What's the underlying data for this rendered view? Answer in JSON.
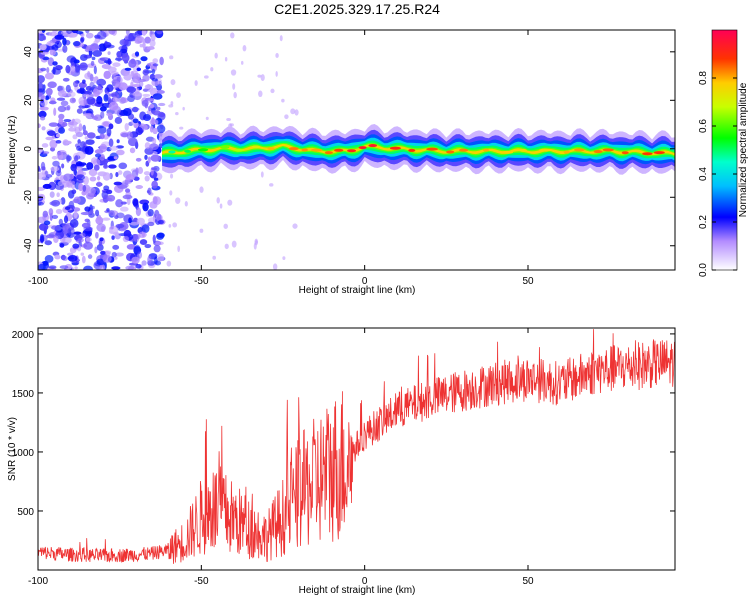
{
  "title": "C2E1.2025.329.17.25.R24",
  "chart_data": [
    {
      "type": "heatmap",
      "xlabel": "Height of straight line (km)",
      "ylabel": "Frequency (Hz)",
      "xlim": [
        -100,
        95
      ],
      "ylim": [
        -50,
        49
      ],
      "xticks": [
        -100,
        -50,
        0,
        50
      ],
      "yticks": [
        -40,
        -20,
        0,
        20,
        40
      ],
      "colorbar": {
        "label": "Normalized spectral amplitude",
        "range": [
          0,
          1
        ],
        "ticks": [
          "0.0",
          "0.2",
          "0.4",
          "0.6",
          "0.8"
        ]
      },
      "ridge": {
        "description_x_km": [
          -62,
          -55,
          -45,
          -35,
          -25,
          -15,
          -5,
          0,
          10,
          25,
          50,
          75,
          95
        ],
        "center_hz": [
          -2,
          -1,
          0,
          0,
          1,
          -1,
          -1,
          1,
          0,
          -1,
          -1,
          -1,
          -2
        ],
        "peak_amplitude": [
          0.45,
          0.5,
          0.6,
          0.7,
          0.85,
          0.8,
          0.9,
          0.95,
          0.9,
          0.85,
          0.75,
          0.85,
          0.9
        ]
      },
      "noise_region_x_km": [
        -100,
        -62
      ]
    },
    {
      "type": "line",
      "xlabel": "Height of straight line (km)",
      "ylabel": "SNR (10 * v/v)",
      "xlim": [
        -100,
        95
      ],
      "ylim": [
        0,
        2050
      ],
      "xticks": [
        -100,
        -50,
        0,
        50
      ],
      "yticks": [
        500,
        1000,
        1500,
        2000
      ],
      "series": [
        {
          "name": "SNR",
          "color": "#ee3333",
          "trend_x": [
            -100,
            -90,
            -80,
            -70,
            -65,
            -60,
            -55,
            -50,
            -45,
            -40,
            -35,
            -30,
            -25,
            -20,
            -15,
            -10,
            -5,
            0,
            5,
            10,
            20,
            30,
            40,
            50,
            60,
            70,
            80,
            90,
            95
          ],
          "trend_y": [
            150,
            130,
            120,
            130,
            140,
            170,
            250,
            450,
            520,
            430,
            350,
            280,
            450,
            650,
            750,
            850,
            950,
            1150,
            1250,
            1350,
            1450,
            1520,
            1580,
            1620,
            1580,
            1680,
            1720,
            1750,
            1760
          ]
        }
      ]
    }
  ]
}
